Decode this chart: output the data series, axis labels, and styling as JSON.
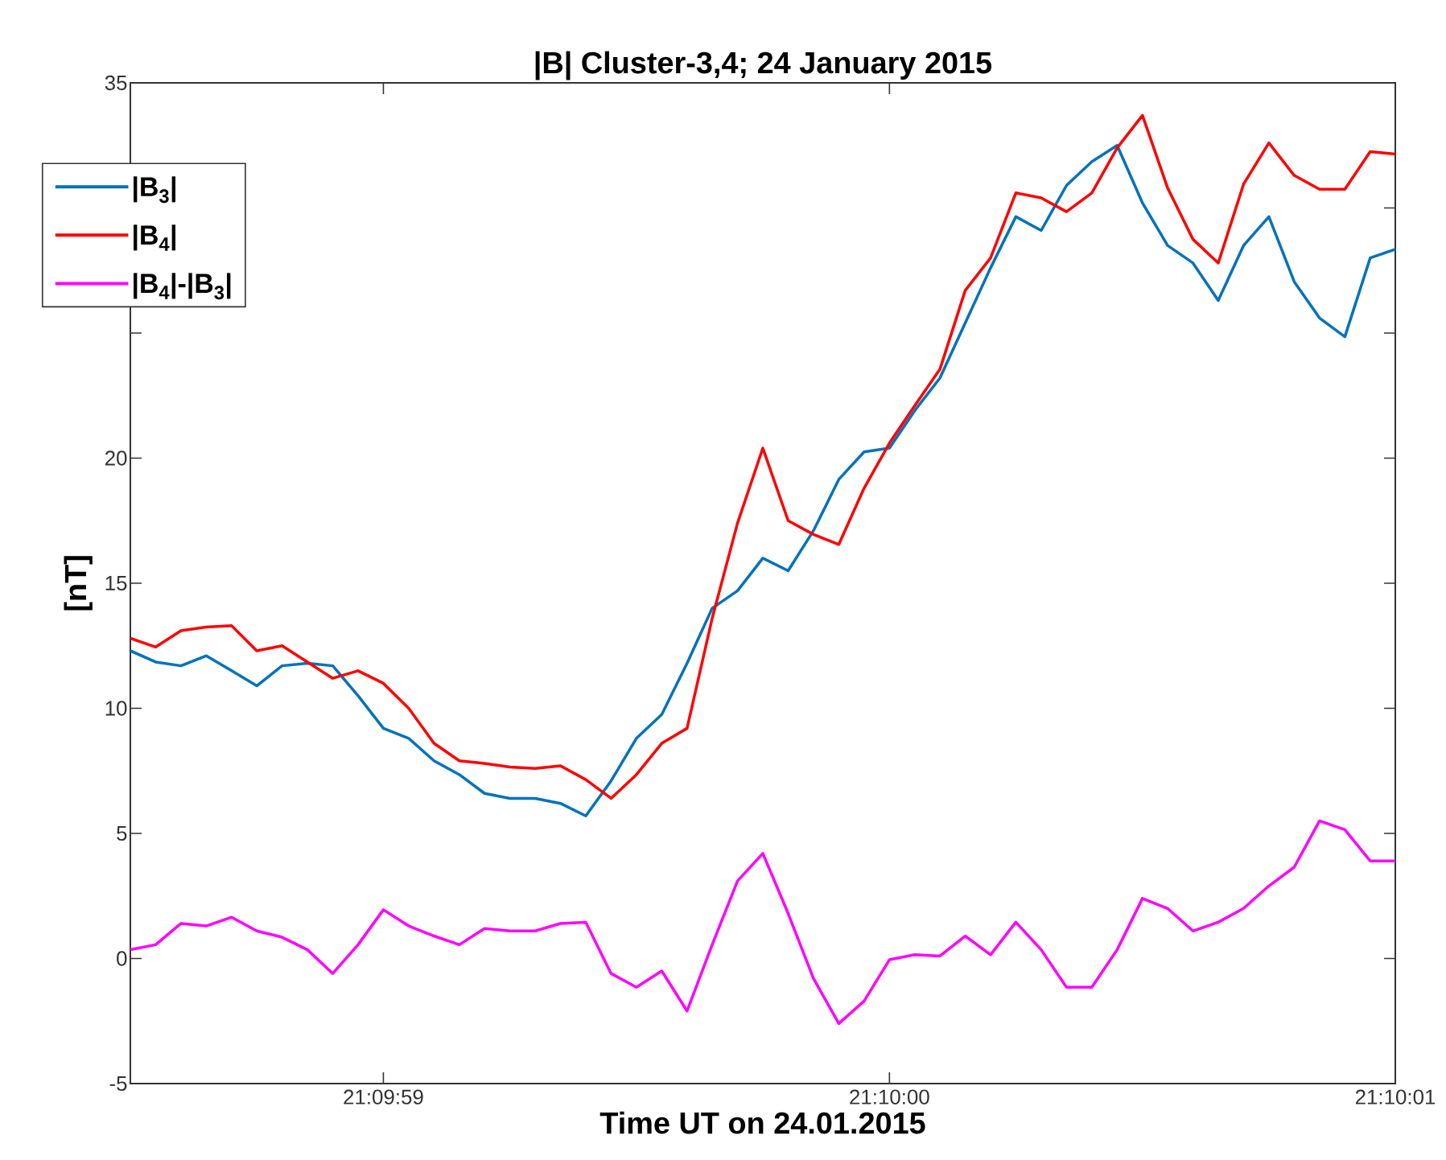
{
  "chart_data": {
    "type": "line",
    "title": "|B| Cluster-3,4;  24 January 2015",
    "xlabel": "Time UT on 24.01.2015",
    "ylabel": "[nT]",
    "x": [
      21.16625,
      21.1662639,
      21.1662778,
      21.1662917,
      21.1663056,
      21.1663194,
      21.1663333,
      21.1663472,
      21.1663611,
      21.166375,
      21.1663889,
      21.1664028,
      21.1664167,
      21.1664306,
      21.1664444,
      21.1664583,
      21.1664722,
      21.1664861,
      21.1665,
      21.1665139,
      21.1665278,
      21.1665417,
      21.1665556,
      21.1665694,
      21.1665833,
      21.1665972,
      21.1666111,
      21.166625,
      21.1666389,
      21.1666528,
      21.1666667,
      21.1666806,
      21.1666944,
      21.1667083,
      21.1667222,
      21.1667361,
      21.16675,
      21.1667639,
      21.1667778,
      21.1667917,
      21.1668056,
      21.1668194,
      21.1668333,
      21.1668472,
      21.1668611,
      21.166875,
      21.1668889,
      21.1669028,
      21.1669167,
      21.1669306,
      21.1669444
    ],
    "series": [
      {
        "name": "|B$_{3}$|",
        "color": "#0072bd",
        "values": [
          12.3,
          11.85,
          11.7,
          12.1,
          11.5,
          10.9,
          11.7,
          11.8,
          11.7,
          10.5,
          9.2,
          8.8,
          7.9,
          7.35,
          6.6,
          6.4,
          6.4,
          6.2,
          5.7,
          7.1,
          8.8,
          9.75,
          11.8,
          14.0,
          14.7,
          16.0,
          15.5,
          17.1,
          19.15,
          20.25,
          20.4,
          21.9,
          23.2,
          25.4,
          27.6,
          29.65,
          29.1,
          30.9,
          31.85,
          32.5,
          30.2,
          28.5,
          27.8,
          26.3,
          28.5,
          29.65,
          27.05,
          25.6,
          24.85,
          28.0,
          28.35
        ]
      },
      {
        "name": "|B$_{4}$|",
        "color": "#ff0000",
        "values": [
          12.8,
          12.45,
          13.1,
          13.25,
          13.3,
          12.3,
          12.5,
          11.85,
          11.2,
          11.5,
          11.0,
          10.0,
          8.6,
          7.9,
          7.8,
          7.65,
          7.6,
          7.7,
          7.15,
          6.4,
          7.35,
          8.6,
          9.2,
          13.6,
          17.4,
          20.4,
          17.5,
          16.95,
          16.55,
          18.8,
          20.6,
          22.1,
          23.55,
          26.7,
          28.0,
          30.6,
          30.4,
          29.85,
          30.6,
          32.4,
          33.7,
          30.8,
          28.75,
          27.8,
          30.95,
          32.6,
          31.3,
          30.75,
          30.75,
          32.25,
          32.15
        ]
      },
      {
        "name": "|B$_{4}$|-|B$_{3}$|",
        "color": "#ff00ff",
        "values": [
          0.35,
          0.55,
          1.4,
          1.3,
          1.65,
          1.1,
          0.85,
          0.35,
          -0.6,
          0.55,
          1.95,
          1.3,
          0.9,
          0.55,
          1.2,
          1.1,
          1.1,
          1.4,
          1.45,
          -0.6,
          -1.15,
          -0.5,
          -2.1,
          0.55,
          3.1,
          4.2,
          1.8,
          -0.8,
          -2.6,
          -1.7,
          -0.05,
          0.15,
          0.1,
          0.9,
          0.15,
          1.45,
          0.35,
          -1.15,
          -1.15,
          0.35,
          2.4,
          2.0,
          1.1,
          1.45,
          2.0,
          2.9,
          3.65,
          5.5,
          5.15,
          3.9,
          3.9
        ]
      }
    ],
    "xlim": [
      21.16625,
      21.1669444
    ],
    "xticks": [
      {
        "value": 21.1663889,
        "label": "21:09:59"
      },
      {
        "value": 21.1666667,
        "label": "21:10:00"
      },
      {
        "value": 21.1669444,
        "label": "21:10:01"
      }
    ],
    "ylim": [
      -5,
      35
    ],
    "yticks": [
      -5,
      0,
      5,
      10,
      15,
      20,
      {
        "value": 25,
        "label": null
      },
      {
        "value": 30,
        "label": null
      },
      35
    ],
    "legend": "top left",
    "grid": false,
    "marker": "none",
    "line_style": "solid"
  }
}
